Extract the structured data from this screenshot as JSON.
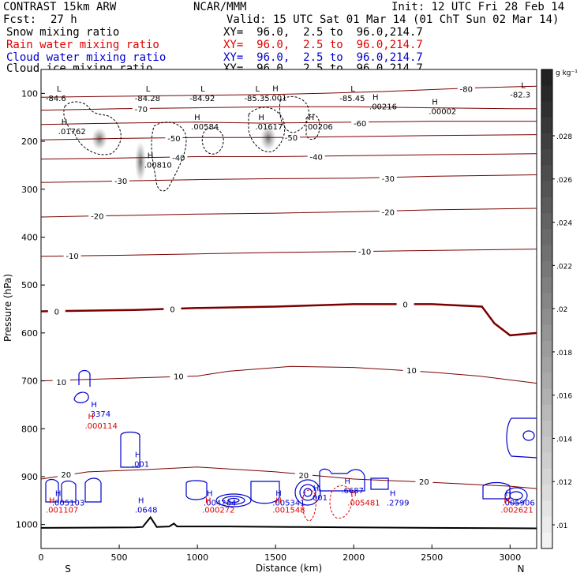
{
  "header": {
    "model": "CONTRAST 15km ARW",
    "center": "NCAR/MMM",
    "init": "Init: 12 UTC Fri 28 Feb 14",
    "fcst_label": "Fcst:",
    "fcst_value": "27 h",
    "valid": "Valid: 15 UTC Sat 01 Mar 14 (01 ChT Sun 02 Mar 14)",
    "fields": [
      {
        "label": "Snow mixing ratio",
        "xy": "XY=  96.0,  2.5 to  96.0,214.7",
        "color": "#000000"
      },
      {
        "label": "Rain water mixing ratio",
        "xy": "XY=  96.0,  2.5 to  96.0,214.7",
        "color": "#e00000"
      },
      {
        "label": "Cloud water mixing ratio",
        "xy": "XY=  96.0,  2.5 to  96.0,214.7",
        "color": "#0000cc"
      },
      {
        "label": "Cloud ice mixing ratio",
        "xy": "XY=  96.0,  2.5 to  96.0,214.7",
        "color": "#000000"
      }
    ]
  },
  "chart_data": {
    "type": "cross-section",
    "xlabel": "Distance (km)",
    "ylabel": "Pressure (hPa)",
    "xlim": [
      0,
      3170
    ],
    "ylim": [
      1050,
      50
    ],
    "x_ticks": [
      0,
      500,
      1000,
      1500,
      2000,
      2500,
      3000
    ],
    "y_ticks": [
      100,
      200,
      300,
      400,
      500,
      600,
      700,
      800,
      900,
      1000
    ],
    "end_labels": {
      "left": "S",
      "right": "N"
    },
    "colorbar": {
      "unit": "g kg⁻¹",
      "ticks": [
        ".01",
        ".012",
        ".014",
        ".016",
        ".018",
        ".02",
        ".022",
        ".024",
        ".026",
        ".028"
      ]
    },
    "temperature_contours": [
      {
        "level": -80,
        "pts": [
          [
            0,
            108
          ],
          [
            500,
            106
          ],
          [
            1000,
            104
          ],
          [
            1500,
            102
          ],
          [
            1800,
            100
          ],
          [
            2200,
            96
          ],
          [
            2500,
            92
          ],
          [
            2800,
            88
          ],
          [
            3170,
            85
          ]
        ],
        "labels": [
          [
            2720,
            90,
            "-80"
          ]
        ]
      },
      {
        "level": -70,
        "pts": [
          [
            0,
            135
          ],
          [
            500,
            132
          ],
          [
            1000,
            130
          ],
          [
            1500,
            128
          ],
          [
            2000,
            128
          ],
          [
            2500,
            130
          ],
          [
            3000,
            132
          ],
          [
            3170,
            132
          ]
        ],
        "labels": [
          [
            640,
            132,
            "-70"
          ]
        ]
      },
      {
        "level": -60,
        "pts": [
          [
            0,
            165
          ],
          [
            500,
            162
          ],
          [
            1000,
            160
          ],
          [
            1400,
            162
          ],
          [
            2000,
            160
          ],
          [
            2500,
            158
          ],
          [
            3000,
            158
          ],
          [
            3170,
            158
          ]
        ],
        "labels": [
          [
            2040,
            162,
            "-60"
          ]
        ]
      },
      {
        "level": -50,
        "pts": [
          [
            0,
            197
          ],
          [
            500,
            194
          ],
          [
            1000,
            192
          ],
          [
            1500,
            192
          ],
          [
            2000,
            190
          ],
          [
            2500,
            188
          ],
          [
            3170,
            186
          ]
        ],
        "labels": [
          [
            850,
            193,
            "-50"
          ],
          [
            1600,
            192,
            "-50"
          ]
        ]
      },
      {
        "level": -40,
        "pts": [
          [
            0,
            237
          ],
          [
            500,
            235
          ],
          [
            1000,
            232
          ],
          [
            1500,
            232
          ],
          [
            2000,
            230
          ],
          [
            2500,
            228
          ],
          [
            3170,
            226
          ]
        ],
        "labels": [
          [
            880,
            234,
            "-40"
          ],
          [
            1760,
            232,
            "-40"
          ]
        ]
      },
      {
        "level": -30,
        "pts": [
          [
            0,
            286
          ],
          [
            500,
            283
          ],
          [
            1000,
            280
          ],
          [
            1500,
            278
          ],
          [
            2000,
            277
          ],
          [
            2500,
            273
          ],
          [
            3170,
            270
          ]
        ],
        "labels": [
          [
            510,
            282,
            "-30"
          ],
          [
            2220,
            277,
            "-30"
          ]
        ]
      },
      {
        "level": -20,
        "pts": [
          [
            0,
            358
          ],
          [
            500,
            355
          ],
          [
            1000,
            352
          ],
          [
            1500,
            350
          ],
          [
            2000,
            347
          ],
          [
            2500,
            343
          ],
          [
            3170,
            340
          ]
        ],
        "labels": [
          [
            360,
            356,
            "-20"
          ],
          [
            2220,
            347,
            "-20"
          ]
        ]
      },
      {
        "level": -10,
        "pts": [
          [
            0,
            440
          ],
          [
            500,
            438
          ],
          [
            1000,
            435
          ],
          [
            1500,
            432
          ],
          [
            2000,
            430
          ],
          [
            2500,
            428
          ],
          [
            3170,
            425
          ]
        ],
        "labels": [
          [
            200,
            439,
            "-10"
          ],
          [
            2070,
            430,
            "-10"
          ]
        ]
      },
      {
        "level": 0,
        "pts": [
          [
            0,
            555
          ],
          [
            600,
            552
          ],
          [
            1000,
            548
          ],
          [
            1500,
            545
          ],
          [
            2000,
            540
          ],
          [
            2500,
            540
          ],
          [
            2820,
            545
          ],
          [
            2900,
            580
          ],
          [
            3000,
            605
          ],
          [
            3170,
            600
          ]
        ],
        "labels": [
          [
            100,
            555,
            "0"
          ],
          [
            840,
            550,
            "0"
          ],
          [
            2330,
            540,
            "0"
          ]
        ]
      },
      {
        "level": 10,
        "pts": [
          [
            0,
            700
          ],
          [
            500,
            695
          ],
          [
            1000,
            690
          ],
          [
            1200,
            680
          ],
          [
            1600,
            670
          ],
          [
            2000,
            672
          ],
          [
            2500,
            682
          ],
          [
            2800,
            690
          ],
          [
            3170,
            705
          ]
        ],
        "labels": [
          [
            130,
            702,
            "10"
          ],
          [
            880,
            690,
            "10"
          ],
          [
            2370,
            678,
            "10"
          ]
        ]
      },
      {
        "level": 20,
        "pts": [
          [
            0,
            905
          ],
          [
            300,
            890
          ],
          [
            700,
            885
          ],
          [
            1000,
            880
          ],
          [
            1500,
            890
          ],
          [
            2000,
            905
          ],
          [
            2500,
            912
          ],
          [
            3000,
            920
          ],
          [
            3170,
            925
          ]
        ],
        "labels": [
          [
            160,
            895,
            "20"
          ],
          [
            1680,
            897,
            "20"
          ],
          [
            2450,
            910,
            "20"
          ]
        ]
      }
    ],
    "max_labels": [
      {
        "x": 110,
        "p": 170,
        "value": ".01762",
        "color": "#000000"
      },
      {
        "x": 660,
        "p": 240,
        "value": ".00810",
        "color": "#000000"
      },
      {
        "x": 960,
        "p": 160,
        "value": ".00584",
        "color": "#000000"
      },
      {
        "x": 1370,
        "p": 160,
        "value": ".01617",
        "color": "#000000"
      },
      {
        "x": 1460,
        "p": 100,
        "value": ".001",
        "color": "#000000"
      },
      {
        "x": 1690,
        "p": 160,
        "value": ".00206",
        "color": "#000000"
      },
      {
        "x": 2100,
        "p": 118,
        "value": ".00216",
        "color": "#000000"
      },
      {
        "x": 2480,
        "p": 128,
        "value": ".00002",
        "color": "#000000"
      },
      {
        "x": 300,
        "p": 760,
        "value": ".3374",
        "color": "#0000cc"
      },
      {
        "x": 280,
        "p": 785,
        "value": ".000114",
        "color": "#e00000"
      },
      {
        "x": 580,
        "p": 865,
        "value": ".001",
        "color": "#0000cc"
      },
      {
        "x": 70,
        "p": 945,
        "value": ".005103",
        "color": "#0000cc"
      },
      {
        "x": 30,
        "p": 960,
        "value": ".001107",
        "color": "#e00000"
      },
      {
        "x": 600,
        "p": 960,
        "value": ".0648",
        "color": "#0000cc"
      },
      {
        "x": 1040,
        "p": 945,
        "value": ".004264",
        "color": "#0000cc"
      },
      {
        "x": 1030,
        "p": 960,
        "value": ".000272",
        "color": "#e00000"
      },
      {
        "x": 1480,
        "p": 945,
        "value": ".005341",
        "color": "#0000cc"
      },
      {
        "x": 1480,
        "p": 960,
        "value": ".001548",
        "color": "#e00000"
      },
      {
        "x": 1720,
        "p": 935,
        "value": ".001",
        "color": "#0000cc"
      },
      {
        "x": 1920,
        "p": 920,
        "value": ".6687",
        "color": "#0000cc"
      },
      {
        "x": 1960,
        "p": 945,
        "value": ".005481",
        "color": "#e00000"
      },
      {
        "x": 2210,
        "p": 945,
        "value": ".2799",
        "color": "#0000cc"
      },
      {
        "x": 2950,
        "p": 945,
        "value": ".005906",
        "color": "#0000cc"
      },
      {
        "x": 2940,
        "p": 960,
        "value": ".002621",
        "color": "#e00000"
      }
    ],
    "min_temp_labels": [
      {
        "x": 80,
        "p": 103,
        "value": "-84.6"
      },
      {
        "x": 650,
        "p": 103,
        "value": "-84.28"
      },
      {
        "x": 1000,
        "p": 103,
        "value": "-84.92"
      },
      {
        "x": 1350,
        "p": 103,
        "value": "-85.35"
      },
      {
        "x": 1960,
        "p": 103,
        "value": "-85.45"
      },
      {
        "x": 3050,
        "p": 95,
        "value": "-82.3"
      }
    ]
  }
}
